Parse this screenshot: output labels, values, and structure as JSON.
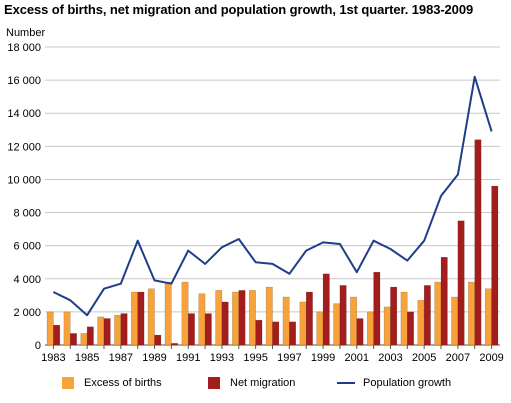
{
  "chart_data": {
    "type": "bar",
    "title": "Excess of births, net migration and population growth, 1st quarter. 1983-2009",
    "ylabel": "Number",
    "xlabel": "",
    "ylim": [
      0,
      18000
    ],
    "yticks": [
      0,
      2000,
      4000,
      6000,
      8000,
      10000,
      12000,
      14000,
      16000,
      18000
    ],
    "ytick_labels": [
      "0",
      "2 000",
      "4 000",
      "6 000",
      "8 000",
      "10 000",
      "12 000",
      "14 000",
      "16 000",
      "18 000"
    ],
    "x_tick_labels": [
      "1983",
      "1985",
      "1987",
      "1989",
      "1991",
      "1993",
      "1995",
      "1997",
      "1999",
      "2001",
      "2003",
      "2005",
      "2007",
      "2009"
    ],
    "categories": [
      "1983",
      "1984",
      "1985",
      "1986",
      "1987",
      "1988",
      "1989",
      "1990",
      "1991",
      "1992",
      "1993",
      "1994",
      "1995",
      "1996",
      "1997",
      "1998",
      "1999",
      "2000",
      "2001",
      "2002",
      "2003",
      "2004",
      "2005",
      "2006",
      "2007",
      "2008",
      "2009"
    ],
    "grid": true,
    "legend_position": "bottom",
    "series": [
      {
        "name": "Excess of births",
        "type": "bar",
        "color": "#f7a23b",
        "values": [
          2000,
          2000,
          700,
          1700,
          1800,
          3200,
          3400,
          3800,
          3800,
          3100,
          3300,
          3200,
          3300,
          3500,
          2900,
          2600,
          2000,
          2500,
          2900,
          2000,
          2300,
          3200,
          2700,
          3800,
          2900,
          3800,
          3400
        ]
      },
      {
        "name": "Net migration",
        "type": "bar",
        "color": "#a31d1d",
        "values": [
          1200,
          700,
          1100,
          1600,
          1900,
          3200,
          600,
          100,
          1900,
          1900,
          2600,
          3300,
          1500,
          1400,
          1400,
          3200,
          4300,
          3600,
          1600,
          4400,
          3500,
          2000,
          3600,
          5300,
          7500,
          12400,
          9600
        ]
      },
      {
        "name": "Population growth",
        "type": "line",
        "color": "#1f3d8a",
        "values": [
          3200,
          2700,
          1800,
          3400,
          3700,
          6300,
          3900,
          3700,
          5700,
          4900,
          5900,
          6400,
          5000,
          4900,
          4300,
          5700,
          6200,
          6100,
          4400,
          6300,
          5800,
          5100,
          6300,
          9000,
          10300,
          16200,
          12900
        ]
      }
    ]
  }
}
